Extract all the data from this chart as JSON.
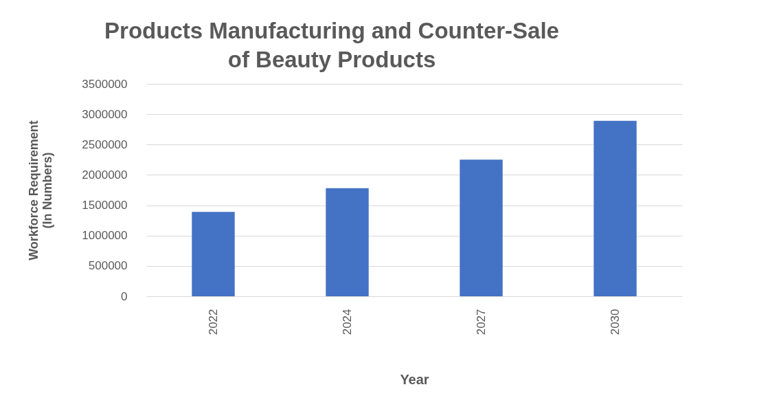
{
  "chart_data": {
    "type": "bar",
    "title": "Products Manufacturing and Counter-Sale\nof Beauty Products",
    "xlabel": "Year",
    "ylabel": "Workforce  Requirement\n(In Numbers)",
    "categories": [
      "2022",
      "2024",
      "2027",
      "2030"
    ],
    "values": [
      1390000,
      1780000,
      2250000,
      2890000
    ],
    "color": "#4472c4",
    "ylim": [
      0,
      3500000
    ],
    "yticks": [
      0,
      500000,
      1000000,
      1500000,
      2000000,
      2500000,
      3000000,
      3500000
    ],
    "grid": "y"
  }
}
